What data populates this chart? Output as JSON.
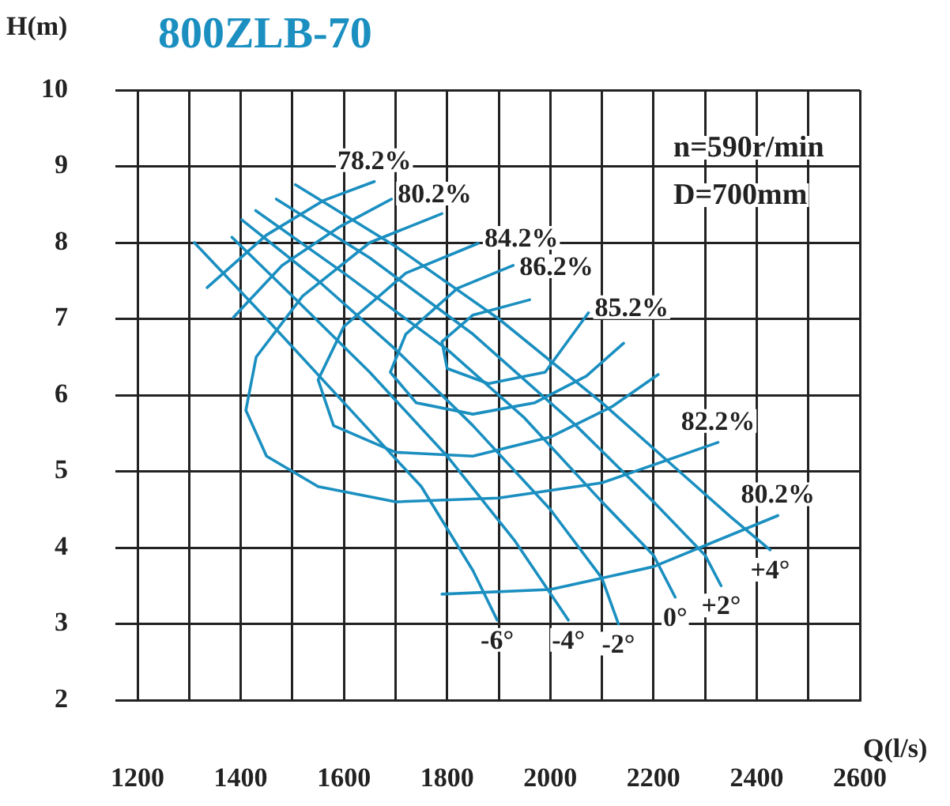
{
  "chart_data": {
    "type": "line",
    "title": "800ZLB-70",
    "xlabel": "Q(l/s)",
    "ylabel": "H(m)",
    "xlim": [
      1200,
      2600
    ],
    "xticks": [
      1200,
      {
        "value": 1300,
        "label": null
      },
      1400,
      {
        "value": 1500,
        "label": null
      },
      1600,
      {
        "value": 1700,
        "label": null
      },
      1800,
      {
        "value": 1900,
        "label": null
      },
      2000,
      {
        "value": 2100,
        "label": null
      },
      2200,
      {
        "value": 2300,
        "label": null
      },
      2400,
      {
        "value": 2500,
        "label": null
      },
      2600
    ],
    "ylim": [
      2,
      10
    ],
    "yticks": [
      2,
      3,
      4,
      5,
      6,
      7,
      8,
      9,
      10
    ],
    "grid": true,
    "legend": false,
    "marker": "none",
    "line_style": "solid",
    "series": [
      {
        "name": "-6°",
        "color": "#1a8fc0",
        "x": [
          1310,
          1450,
          1600,
          1750,
          1850,
          1897
        ],
        "values": [
          8.0,
          7.0,
          5.9,
          4.8,
          3.7,
          3.05
        ]
      },
      {
        "name": "-4°",
        "color": "#1a8fc0",
        "x": [
          1383,
          1500,
          1650,
          1800,
          1930,
          2035
        ],
        "values": [
          8.07,
          7.3,
          6.3,
          5.2,
          4.1,
          3.05
        ]
      },
      {
        "name": "-2°",
        "color": "#1a8fc0",
        "x": [
          1402,
          1550,
          1700,
          1850,
          2000,
          2100,
          2132
        ],
        "values": [
          8.3,
          7.5,
          6.6,
          5.6,
          4.5,
          3.6,
          3.0
        ]
      },
      {
        "name": "0°",
        "color": "#1a8fc0",
        "x": [
          1429,
          1600,
          1800,
          1950,
          2100,
          2200,
          2242
        ],
        "values": [
          8.42,
          7.6,
          6.6,
          5.7,
          4.6,
          3.9,
          3.35
        ]
      },
      {
        "name": "+2°",
        "color": "#1a8fc0",
        "x": [
          1469,
          1650,
          1850,
          2050,
          2200,
          2300,
          2331
        ],
        "values": [
          8.57,
          7.8,
          6.8,
          5.6,
          4.6,
          3.9,
          3.5
        ]
      },
      {
        "name": "+4°",
        "color": "#1a8fc0",
        "x": [
          1506,
          1700,
          1900,
          2100,
          2250,
          2350,
          2426
        ],
        "values": [
          8.76,
          7.95,
          7.0,
          5.9,
          5.0,
          4.4,
          3.97
        ]
      },
      {
        "color": "#1a8fc0",
        "x": [
          1335,
          1450,
          1560,
          1659
        ],
        "values": [
          7.41,
          8.1,
          8.55,
          8.8
        ]
      },
      {
        "color": "#1a8fc0",
        "x": [
          1386,
          1480,
          1590,
          1692
        ],
        "values": [
          7.02,
          7.7,
          8.2,
          8.57
        ]
      },
      {
        "color": "#1a8fc0",
        "x": [
          1790,
          2000,
          2200,
          2441
        ],
        "values": [
          3.39,
          3.45,
          3.75,
          4.42
        ]
      },
      {
        "color": "#1a8fc0",
        "x": [
          1790,
          1650,
          1520,
          1430,
          1410,
          1450,
          1550,
          1700,
          1900,
          2100,
          2325
        ],
        "values": [
          8.38,
          8.0,
          7.3,
          6.5,
          5.8,
          5.2,
          4.8,
          4.6,
          4.65,
          4.85,
          5.38
        ]
      },
      {
        "color": "#1a8fc0",
        "x": [
          1860,
          1720,
          1600,
          1550,
          1580,
          1700,
          1850,
          2000,
          2120,
          2209
        ],
        "values": [
          7.99,
          7.6,
          6.9,
          6.2,
          5.6,
          5.25,
          5.2,
          5.45,
          5.85,
          6.27
        ]
      },
      {
        "color": "#1a8fc0",
        "x": [
          1928,
          1820,
          1720,
          1690,
          1740,
          1850,
          1970,
          2070,
          2142
        ],
        "values": [
          7.7,
          7.4,
          6.8,
          6.3,
          5.9,
          5.75,
          5.9,
          6.25,
          6.68
        ]
      },
      {
        "color": "#1a8fc0",
        "x": [
          1960,
          1850,
          1790,
          1800,
          1880,
          1990,
          2074
        ],
        "values": [
          7.25,
          7.05,
          6.7,
          6.35,
          6.15,
          6.3,
          7.08
        ]
      }
    ],
    "annotations": [
      {
        "text": "78.2%",
        "x": 1659,
        "y": 8.8
      },
      {
        "text": "80.2%",
        "x": 1692,
        "y": 8.57
      },
      {
        "text": "84.2%",
        "x": 1860,
        "y": 7.99
      },
      {
        "text": "86.2%",
        "x": 1928,
        "y": 7.7
      },
      {
        "text": "85.2%",
        "x": 2074,
        "y": 7.08
      },
      {
        "text": "82.2%",
        "x": 2325,
        "y": 5.38
      },
      {
        "text": "80.2%",
        "x": 2441,
        "y": 4.42
      },
      "n=590r/min",
      "D=700mm"
    ]
  }
}
